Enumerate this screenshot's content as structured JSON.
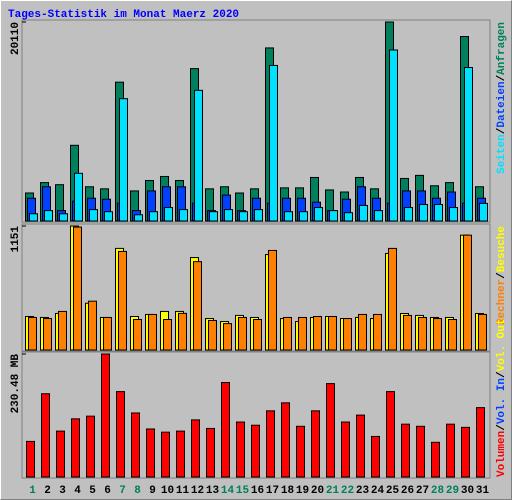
{
  "chart_data": [
    {
      "type": "bar",
      "title": "Tages-Statistik im Monat Maerz 2020",
      "title_color": "#0000ff",
      "ylim": [
        0,
        20110
      ],
      "yticks": [
        20110
      ],
      "legend_separator": "/",
      "series": [
        {
          "name": "Anfragen",
          "color": "#00805c",
          "values": [
            2830,
            3880,
            3670,
            7650,
            3460,
            3250,
            14030,
            3040,
            4090,
            4500,
            4090,
            15400,
            3250,
            3460,
            2830,
            3250,
            17490,
            3350,
            3350,
            4400,
            3140,
            2930,
            4400,
            3250,
            20110,
            4300,
            4610,
            3560,
            3880,
            18640,
            3460
          ]
        },
        {
          "name": "Dateien",
          "color": "#0040ff",
          "values": [
            2300,
            3460,
            1050,
            2000,
            2300,
            2200,
            1800,
            1050,
            3040,
            3460,
            3460,
            1800,
            1050,
            2620,
            1050,
            2300,
            1800,
            2300,
            2300,
            1900,
            1050,
            2200,
            3460,
            2300,
            1800,
            3040,
            3040,
            2300,
            2930,
            1800,
            2300
          ]
        },
        {
          "name": "Seiten",
          "color": "#00e0ff",
          "values": [
            730,
            1050,
            730,
            4820,
            1150,
            940,
            12360,
            630,
            940,
            1360,
            1150,
            13200,
            940,
            1150,
            940,
            1150,
            15720,
            940,
            940,
            1360,
            1050,
            840,
            1570,
            1050,
            17280,
            1360,
            1670,
            1670,
            1360,
            15510,
            1780
          ]
        }
      ]
    },
    {
      "type": "bar",
      "ylim": [
        0,
        1151
      ],
      "yticks": [
        1151
      ],
      "legend_separator": "/",
      "series": [
        {
          "name": "Besuche",
          "color": "#ffff00",
          "values": [
            311,
            302,
            339,
            1151,
            434,
            302,
            943,
            311,
            330,
            358,
            358,
            858,
            292,
            264,
            321,
            302,
            886,
            292,
            264,
            302,
            311,
            292,
            302,
            292,
            896,
            339,
            321,
            302,
            302,
            1066,
            339
          ]
        },
        {
          "name": "Rechner",
          "color": "#ff8000",
          "values": [
            302,
            292,
            358,
            1141,
            453,
            302,
            915,
            283,
            330,
            283,
            340,
            820,
            274,
            245,
            302,
            283,
            924,
            302,
            302,
            311,
            311,
            292,
            330,
            330,
            943,
            321,
            302,
            292,
            283,
            1066,
            330
          ]
        }
      ]
    },
    {
      "type": "bar",
      "ylim": [
        0,
        230.48
      ],
      "yticks": [
        {
          "value": 230.48,
          "label": "230.48 MB"
        }
      ],
      "legend_separator": "/",
      "categories": [
        "1",
        "2",
        "3",
        "4",
        "5",
        "6",
        "7",
        "8",
        "9",
        "10",
        "11",
        "12",
        "13",
        "14",
        "15",
        "16",
        "17",
        "18",
        "19",
        "20",
        "21",
        "22",
        "23",
        "24",
        "25",
        "26",
        "27",
        "28",
        "29",
        "30",
        "31"
      ],
      "category_colors": [
        "#00805c",
        "#000000",
        "#000000",
        "#000000",
        "#000000",
        "#000000",
        "#00805c",
        "#00805c",
        "#000000",
        "#000000",
        "#000000",
        "#000000",
        "#000000",
        "#00805c",
        "#00805c",
        "#000000",
        "#000000",
        "#000000",
        "#000000",
        "#000000",
        "#00805c",
        "#00805c",
        "#000000",
        "#000000",
        "#000000",
        "#000000",
        "#000000",
        "#00805c",
        "#00805c",
        "#000000",
        "#000000"
      ],
      "series": [
        {
          "name": "Volumen",
          "color": "#ff0000",
          "values": [
            66.7,
            156,
            86,
            109,
            114,
            230.48,
            160,
            120,
            90,
            84,
            86,
            107,
            91,
            177,
            103,
            97,
            124,
            139,
            95,
            124,
            175,
            103,
            116,
            76,
            160,
            99,
            95,
            65,
            99,
            93,
            130
          ]
        },
        {
          "name": "Vol. In",
          "color": "#0040ff",
          "values": [
            0,
            0,
            0,
            0,
            0,
            0,
            0,
            0,
            0,
            0,
            0,
            0,
            0,
            0,
            0,
            0,
            0,
            0,
            0,
            0,
            0,
            0,
            0,
            0,
            0,
            0,
            0,
            0,
            0,
            0,
            0
          ]
        },
        {
          "name": "Vol. Out",
          "color": "#ffff00",
          "values": [
            0,
            0,
            0,
            0,
            0,
            0,
            0,
            0,
            0,
            0,
            0,
            0,
            0,
            0,
            0,
            0,
            0,
            0,
            0,
            0,
            0,
            0,
            0,
            0,
            0,
            0,
            0,
            0,
            0,
            0,
            0
          ]
        }
      ]
    }
  ]
}
